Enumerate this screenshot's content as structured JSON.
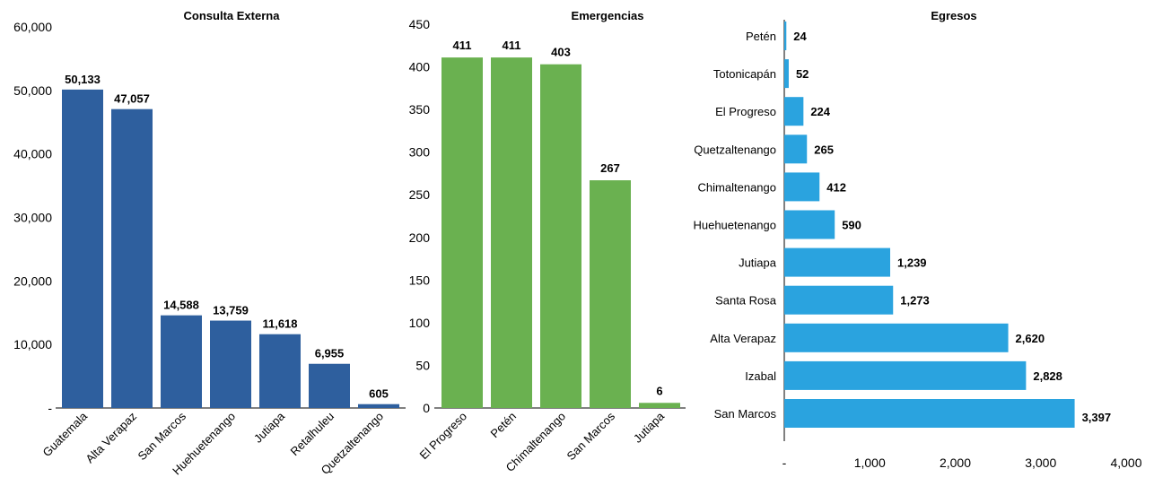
{
  "chart_data": [
    {
      "type": "bar",
      "title": "Consulta Externa",
      "categories": [
        "Guatemala",
        "Alta Verapaz",
        "San Marcos",
        "Huehuetenango",
        "Jutiapa",
        "Retalhuleu",
        "Quetzaltenango"
      ],
      "values": [
        50133,
        47057,
        14588,
        13759,
        11618,
        6955,
        605
      ],
      "value_labels": [
        "50,133",
        "47,057",
        "14,588",
        "13,759",
        "11,618",
        "6,955",
        "605"
      ],
      "ylim": [
        0,
        60000
      ],
      "yticks": [
        0,
        10000,
        20000,
        30000,
        40000,
        50000,
        60000
      ],
      "ytick_labels": [
        "-",
        "10,000",
        "20,000",
        "30,000",
        "40,000",
        "50,000",
        "60,000"
      ],
      "color": "#2E5F9E"
    },
    {
      "type": "bar",
      "title": "Emergencias",
      "categories": [
        "El Progreso",
        "Petén",
        "Chimaltenango",
        "San Marcos",
        "Jutiapa"
      ],
      "values": [
        411,
        411,
        403,
        267,
        6
      ],
      "value_labels": [
        "411",
        "411",
        "403",
        "267",
        "6"
      ],
      "ylim": [
        0,
        450
      ],
      "yticks": [
        0,
        50,
        100,
        150,
        200,
        250,
        300,
        350,
        400,
        450
      ],
      "ytick_labels": [
        "0",
        "50",
        "100",
        "150",
        "200",
        "250",
        "300",
        "350",
        "400",
        "450"
      ],
      "color": "#6AB150"
    },
    {
      "type": "bar",
      "orientation": "horizontal",
      "title": "Egresos",
      "categories": [
        "Petén",
        "Totonicapán",
        "El Progreso",
        "Quetzaltenango",
        "Chimaltenango",
        "Huehuetenango",
        "Jutiapa",
        "Santa Rosa",
        "Alta Verapaz",
        "Izabal",
        "San Marcos"
      ],
      "values": [
        24,
        52,
        224,
        265,
        412,
        590,
        1239,
        1273,
        2620,
        2828,
        3397
      ],
      "value_labels": [
        "24",
        "52",
        "224",
        "265",
        "412",
        "590",
        "1,239",
        "1,273",
        "2,620",
        "2,828",
        "3,397"
      ],
      "xlim": [
        0,
        4000
      ],
      "xticks": [
        0,
        1000,
        2000,
        3000,
        4000
      ],
      "xtick_labels": [
        "-",
        "1,000",
        "2,000",
        "3,000",
        "4,000"
      ],
      "color": "#2AA3DF"
    }
  ]
}
